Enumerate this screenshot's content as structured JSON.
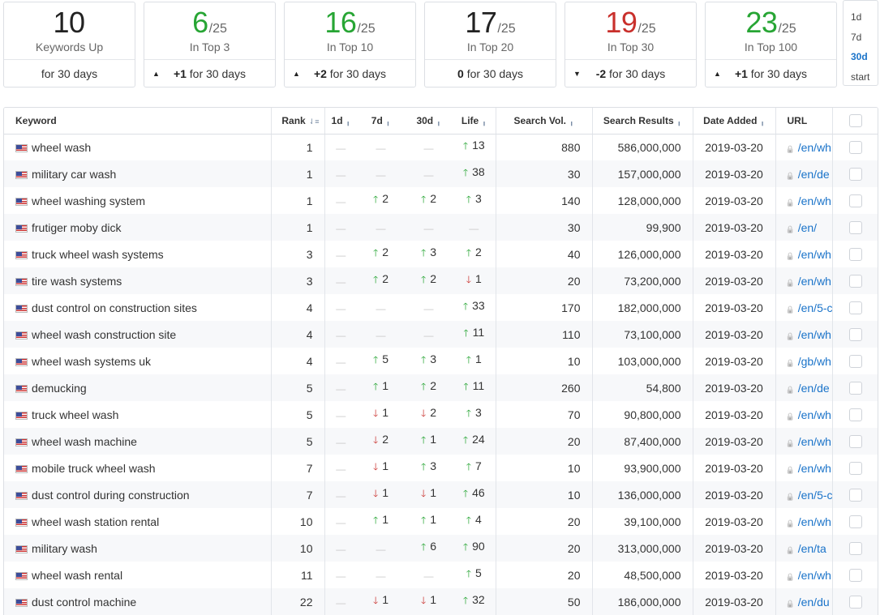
{
  "cards": [
    {
      "value": "10",
      "denominator": "",
      "label": "Keywords Up",
      "change_arrow": "",
      "change_value": "",
      "change_text": "for 30 days",
      "color": "#222222"
    },
    {
      "value": "6",
      "denominator": "/25",
      "label": "In Top 3",
      "change_arrow": "🡑",
      "change_value": "+1",
      "change_text": " for 30 days",
      "color": "#27a534"
    },
    {
      "value": "16",
      "denominator": "/25",
      "label": "In Top 10",
      "change_arrow": "🡑",
      "change_value": "+2",
      "change_text": " for 30 days",
      "color": "#27a534"
    },
    {
      "value": "17",
      "denominator": "/25",
      "label": "In Top 20",
      "change_arrow": "",
      "change_value": "0",
      "change_text": " for 30 days",
      "color": "#222222"
    },
    {
      "value": "19",
      "denominator": "/25",
      "label": "In Top 30",
      "change_arrow": "🡓",
      "change_value": "-2",
      "change_text": " for 30 days",
      "color": "#c9302c"
    },
    {
      "value": "23",
      "denominator": "/25",
      "label": "In Top 100",
      "change_arrow": "🡑",
      "change_value": "+1",
      "change_text": " for 30 days",
      "color": "#27a534"
    }
  ],
  "periods": [
    "1d",
    "7d",
    "30d",
    "start"
  ],
  "active_period": "30d",
  "table": {
    "headers": {
      "keyword": "Keyword",
      "rank": "Rank",
      "d1": "1d",
      "d7": "7d",
      "d30": "30d",
      "life": "Life",
      "search_vol": "Search Vol.",
      "search_results": "Search Results",
      "date_added": "Date Added",
      "url": "URL"
    },
    "rows": [
      {
        "keyword": "wheel wash",
        "rank": "1",
        "d1": null,
        "d7": null,
        "d30": null,
        "life": [
          "up",
          "13"
        ],
        "vol": "880",
        "results": "586,000,000",
        "date": "2019-03-20",
        "url": "/en/wh"
      },
      {
        "keyword": "military car wash",
        "rank": "1",
        "d1": null,
        "d7": null,
        "d30": null,
        "life": [
          "up",
          "38"
        ],
        "vol": "30",
        "results": "157,000,000",
        "date": "2019-03-20",
        "url": "/en/de"
      },
      {
        "keyword": "wheel washing system",
        "rank": "1",
        "d1": null,
        "d7": [
          "up",
          "2"
        ],
        "d30": [
          "up",
          "2"
        ],
        "life": [
          "up",
          "3"
        ],
        "vol": "140",
        "results": "128,000,000",
        "date": "2019-03-20",
        "url": "/en/wh"
      },
      {
        "keyword": "frutiger moby dick",
        "rank": "1",
        "d1": null,
        "d7": null,
        "d30": null,
        "life": null,
        "vol": "30",
        "results": "99,900",
        "date": "2019-03-20",
        "url": "/en/"
      },
      {
        "keyword": "truck wheel wash systems",
        "rank": "3",
        "d1": null,
        "d7": [
          "up",
          "2"
        ],
        "d30": [
          "up",
          "3"
        ],
        "life": [
          "up",
          "2"
        ],
        "vol": "40",
        "results": "126,000,000",
        "date": "2019-03-20",
        "url": "/en/wh"
      },
      {
        "keyword": "tire wash systems",
        "rank": "3",
        "d1": null,
        "d7": [
          "up",
          "2"
        ],
        "d30": [
          "up",
          "2"
        ],
        "life": [
          "down",
          "1"
        ],
        "vol": "20",
        "results": "73,200,000",
        "date": "2019-03-20",
        "url": "/en/wh"
      },
      {
        "keyword": "dust control on construction sites",
        "rank": "4",
        "d1": null,
        "d7": null,
        "d30": null,
        "life": [
          "up",
          "33"
        ],
        "vol": "170",
        "results": "182,000,000",
        "date": "2019-03-20",
        "url": "/en/5-c"
      },
      {
        "keyword": "wheel wash construction site",
        "rank": "4",
        "d1": null,
        "d7": null,
        "d30": null,
        "life": [
          "up",
          "11"
        ],
        "vol": "110",
        "results": "73,100,000",
        "date": "2019-03-20",
        "url": "/en/wh"
      },
      {
        "keyword": "wheel wash systems uk",
        "rank": "4",
        "d1": null,
        "d7": [
          "up",
          "5"
        ],
        "d30": [
          "up",
          "3"
        ],
        "life": [
          "up",
          "1"
        ],
        "vol": "10",
        "results": "103,000,000",
        "date": "2019-03-20",
        "url": "/gb/wh"
      },
      {
        "keyword": "demucking",
        "rank": "5",
        "d1": null,
        "d7": [
          "up",
          "1"
        ],
        "d30": [
          "up",
          "2"
        ],
        "life": [
          "up",
          "11"
        ],
        "vol": "260",
        "results": "54,800",
        "date": "2019-03-20",
        "url": "/en/de"
      },
      {
        "keyword": "truck wheel wash",
        "rank": "5",
        "d1": null,
        "d7": [
          "down",
          "1"
        ],
        "d30": [
          "down",
          "2"
        ],
        "life": [
          "up",
          "3"
        ],
        "vol": "70",
        "results": "90,800,000",
        "date": "2019-03-20",
        "url": "/en/wh"
      },
      {
        "keyword": "wheel wash machine",
        "rank": "5",
        "d1": null,
        "d7": [
          "down",
          "2"
        ],
        "d30": [
          "up",
          "1"
        ],
        "life": [
          "up",
          "24"
        ],
        "vol": "20",
        "results": "87,400,000",
        "date": "2019-03-20",
        "url": "/en/wh"
      },
      {
        "keyword": "mobile truck wheel wash",
        "rank": "7",
        "d1": null,
        "d7": [
          "down",
          "1"
        ],
        "d30": [
          "up",
          "3"
        ],
        "life": [
          "up",
          "7"
        ],
        "vol": "10",
        "results": "93,900,000",
        "date": "2019-03-20",
        "url": "/en/wh"
      },
      {
        "keyword": "dust control during construction",
        "rank": "7",
        "d1": null,
        "d7": [
          "down",
          "1"
        ],
        "d30": [
          "down",
          "1"
        ],
        "life": [
          "up",
          "46"
        ],
        "vol": "10",
        "results": "136,000,000",
        "date": "2019-03-20",
        "url": "/en/5-c"
      },
      {
        "keyword": "wheel wash station rental",
        "rank": "10",
        "d1": null,
        "d7": [
          "up",
          "1"
        ],
        "d30": [
          "up",
          "1"
        ],
        "life": [
          "up",
          "4"
        ],
        "vol": "20",
        "results": "39,100,000",
        "date": "2019-03-20",
        "url": "/en/wh"
      },
      {
        "keyword": "military wash",
        "rank": "10",
        "d1": null,
        "d7": null,
        "d30": [
          "up",
          "6"
        ],
        "life": [
          "up",
          "90"
        ],
        "vol": "20",
        "results": "313,000,000",
        "date": "2019-03-20",
        "url": "/en/ta"
      },
      {
        "keyword": "wheel wash rental",
        "rank": "11",
        "d1": null,
        "d7": null,
        "d30": null,
        "life": [
          "up",
          "5"
        ],
        "vol": "20",
        "results": "48,500,000",
        "date": "2019-03-20",
        "url": "/en/wh"
      },
      {
        "keyword": "dust control machine",
        "rank": "22",
        "d1": null,
        "d7": [
          "down",
          "1"
        ],
        "d30": [
          "down",
          "1"
        ],
        "life": [
          "up",
          "32"
        ],
        "vol": "50",
        "results": "186,000,000",
        "date": "2019-03-20",
        "url": "/en/du"
      }
    ]
  }
}
